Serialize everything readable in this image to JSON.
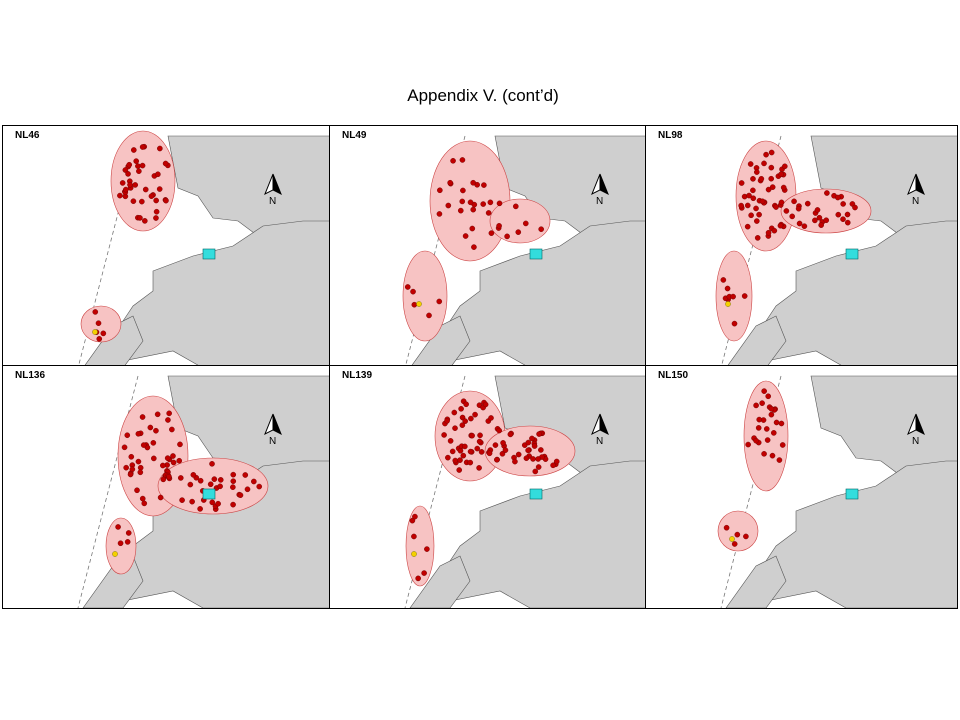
{
  "title": "Appendix V.  (cont’d)",
  "panels": [
    {
      "label": "NL46",
      "north": "N"
    },
    {
      "label": "NL49",
      "north": "N"
    },
    {
      "label": "NL98",
      "north": "N"
    },
    {
      "label": "NL136",
      "north": "N"
    },
    {
      "label": "NL139",
      "north": "N"
    },
    {
      "label": "NL150",
      "north": "N"
    }
  ]
}
